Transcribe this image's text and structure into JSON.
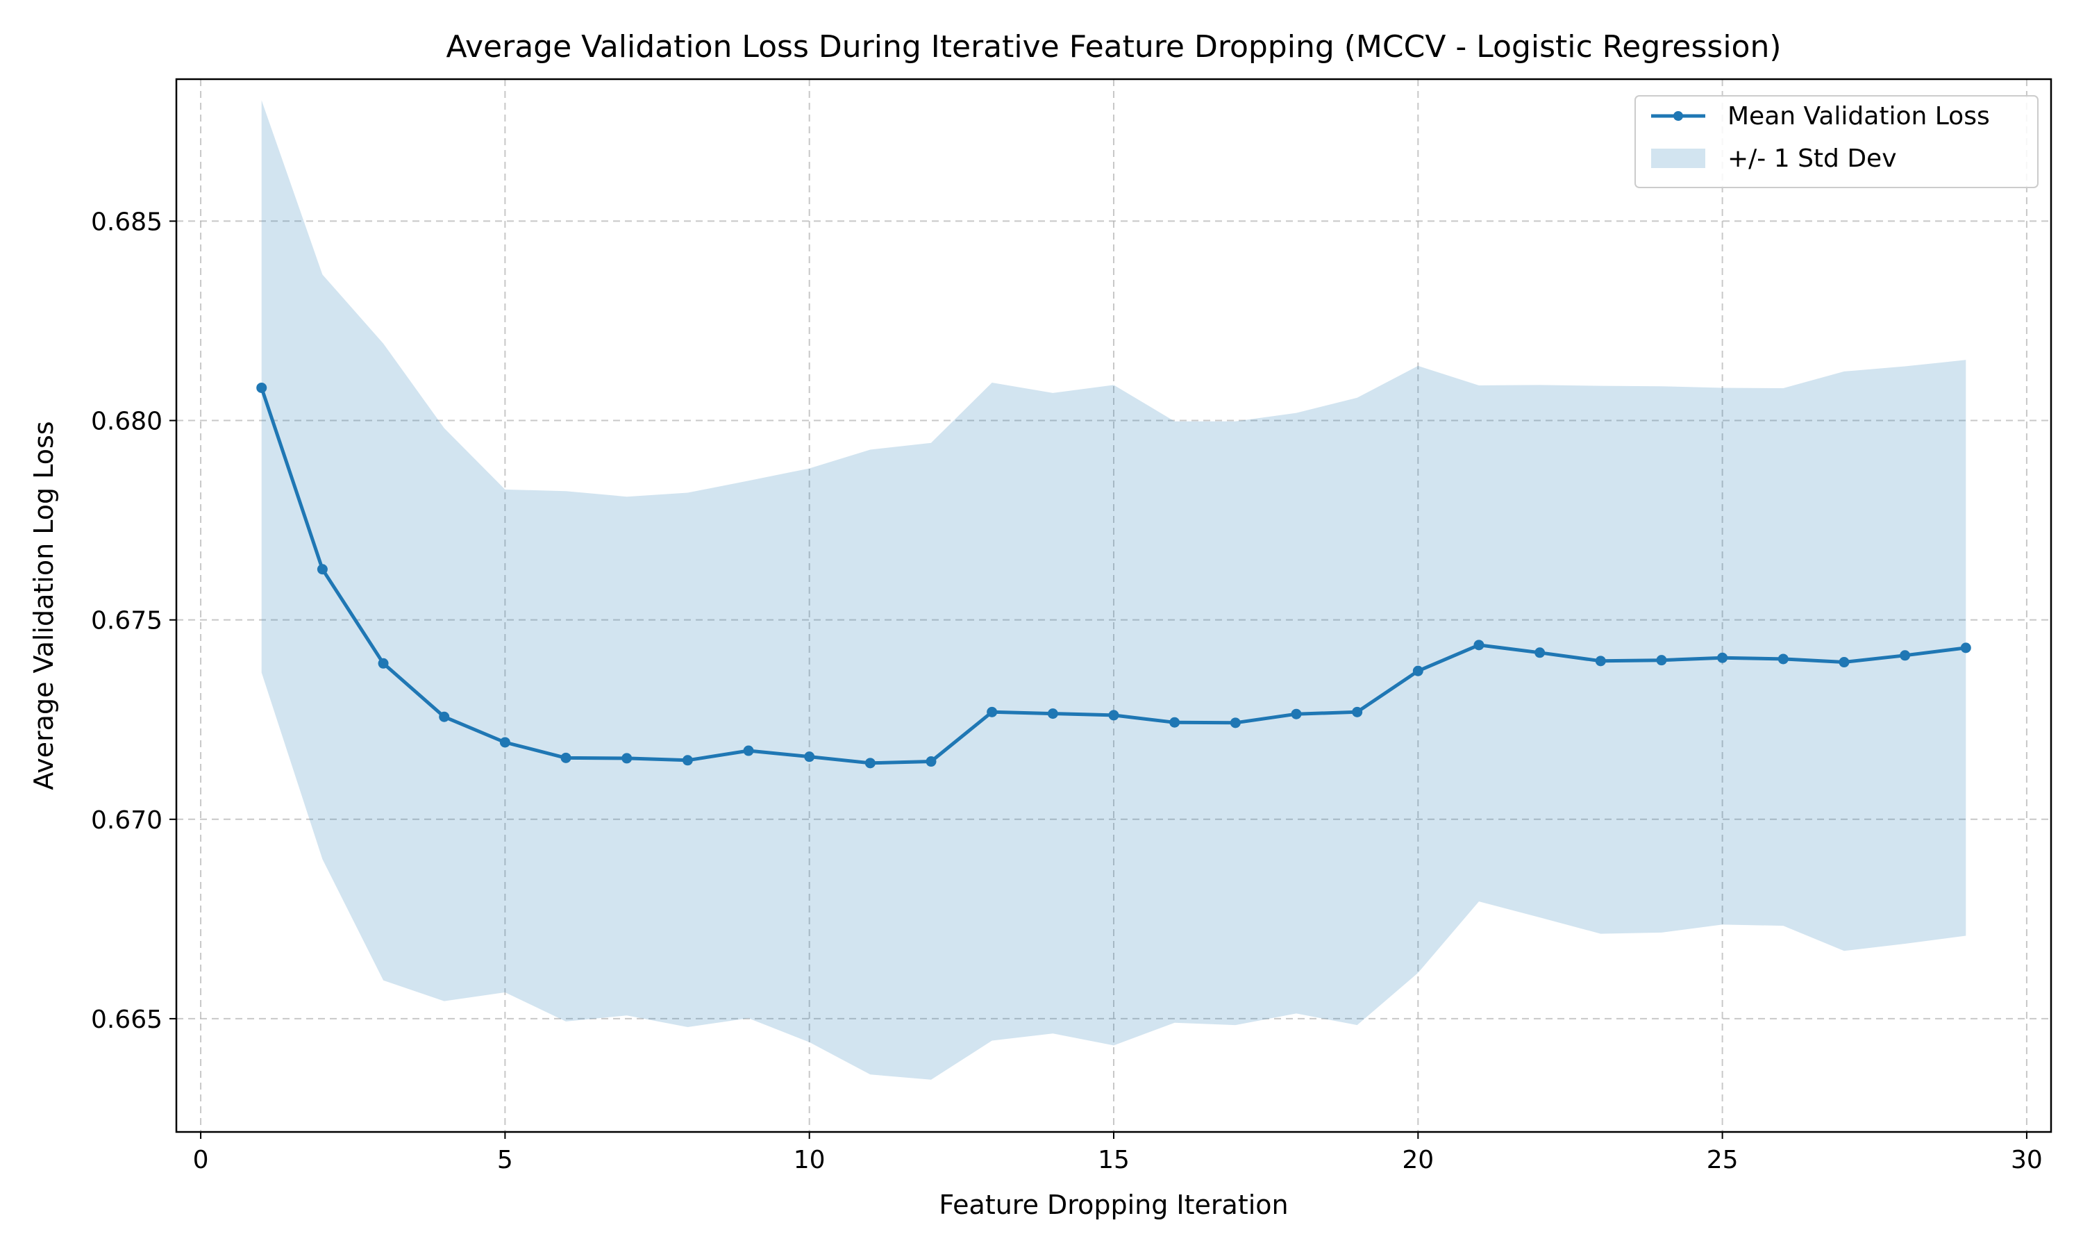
{
  "chart_data": {
    "type": "line",
    "title": "Average Validation Loss During Iterative Feature Dropping (MCCV - Logistic Regression)",
    "xlabel": "Feature Dropping Iteration",
    "ylabel": "Average Validation Log Loss",
    "xlim": [
      -0.4,
      30.4
    ],
    "ylim": [
      0.66216,
      0.68856
    ],
    "xticks": [
      0,
      5,
      10,
      15,
      20,
      25,
      30
    ],
    "yticks": [
      0.665,
      0.67,
      0.675,
      0.68,
      0.685
    ],
    "ytick_labels": [
      "0.665",
      "0.670",
      "0.675",
      "0.680",
      "0.685"
    ],
    "grid": true,
    "legend_position": "top-right",
    "colors": {
      "line": "#1f77b4",
      "band": "#1f77b4"
    },
    "x": [
      1,
      2,
      3,
      4,
      5,
      6,
      7,
      8,
      9,
      10,
      11,
      12,
      13,
      14,
      15,
      16,
      17,
      18,
      19,
      20,
      21,
      22,
      23,
      24,
      25,
      26,
      27,
      28,
      29
    ],
    "series": [
      {
        "name": "Mean Validation Loss",
        "values": [
          0.68082,
          0.67627,
          0.67391,
          0.67257,
          0.67193,
          0.67154,
          0.67153,
          0.67148,
          0.67172,
          0.67157,
          0.67141,
          0.67145,
          0.67269,
          0.67265,
          0.67261,
          0.67243,
          0.67242,
          0.67264,
          0.67269,
          0.67372,
          0.67437,
          0.67418,
          0.67397,
          0.67399,
          0.67405,
          0.67402,
          0.67394,
          0.67411,
          0.6743
        ]
      }
    ],
    "band": {
      "name": "+/- 1 Std Dev",
      "upper": [
        0.68803,
        0.68366,
        0.68193,
        0.67981,
        0.67827,
        0.67823,
        0.67809,
        0.67819,
        0.67849,
        0.6788,
        0.67927,
        0.67944,
        0.68095,
        0.68069,
        0.68089,
        0.67998,
        0.67998,
        0.68019,
        0.68057,
        0.68137,
        0.68088,
        0.68089,
        0.68087,
        0.68086,
        0.68082,
        0.68081,
        0.68123,
        0.68136,
        0.68152
      ],
      "lower": [
        0.67368,
        0.669,
        0.66596,
        0.66544,
        0.66566,
        0.66493,
        0.66508,
        0.66479,
        0.66501,
        0.66441,
        0.6636,
        0.66347,
        0.66445,
        0.66463,
        0.66433,
        0.6649,
        0.66484,
        0.66513,
        0.66484,
        0.66615,
        0.66794,
        0.66754,
        0.66713,
        0.66716,
        0.66736,
        0.66733,
        0.6667,
        0.66688,
        0.66708
      ]
    }
  }
}
